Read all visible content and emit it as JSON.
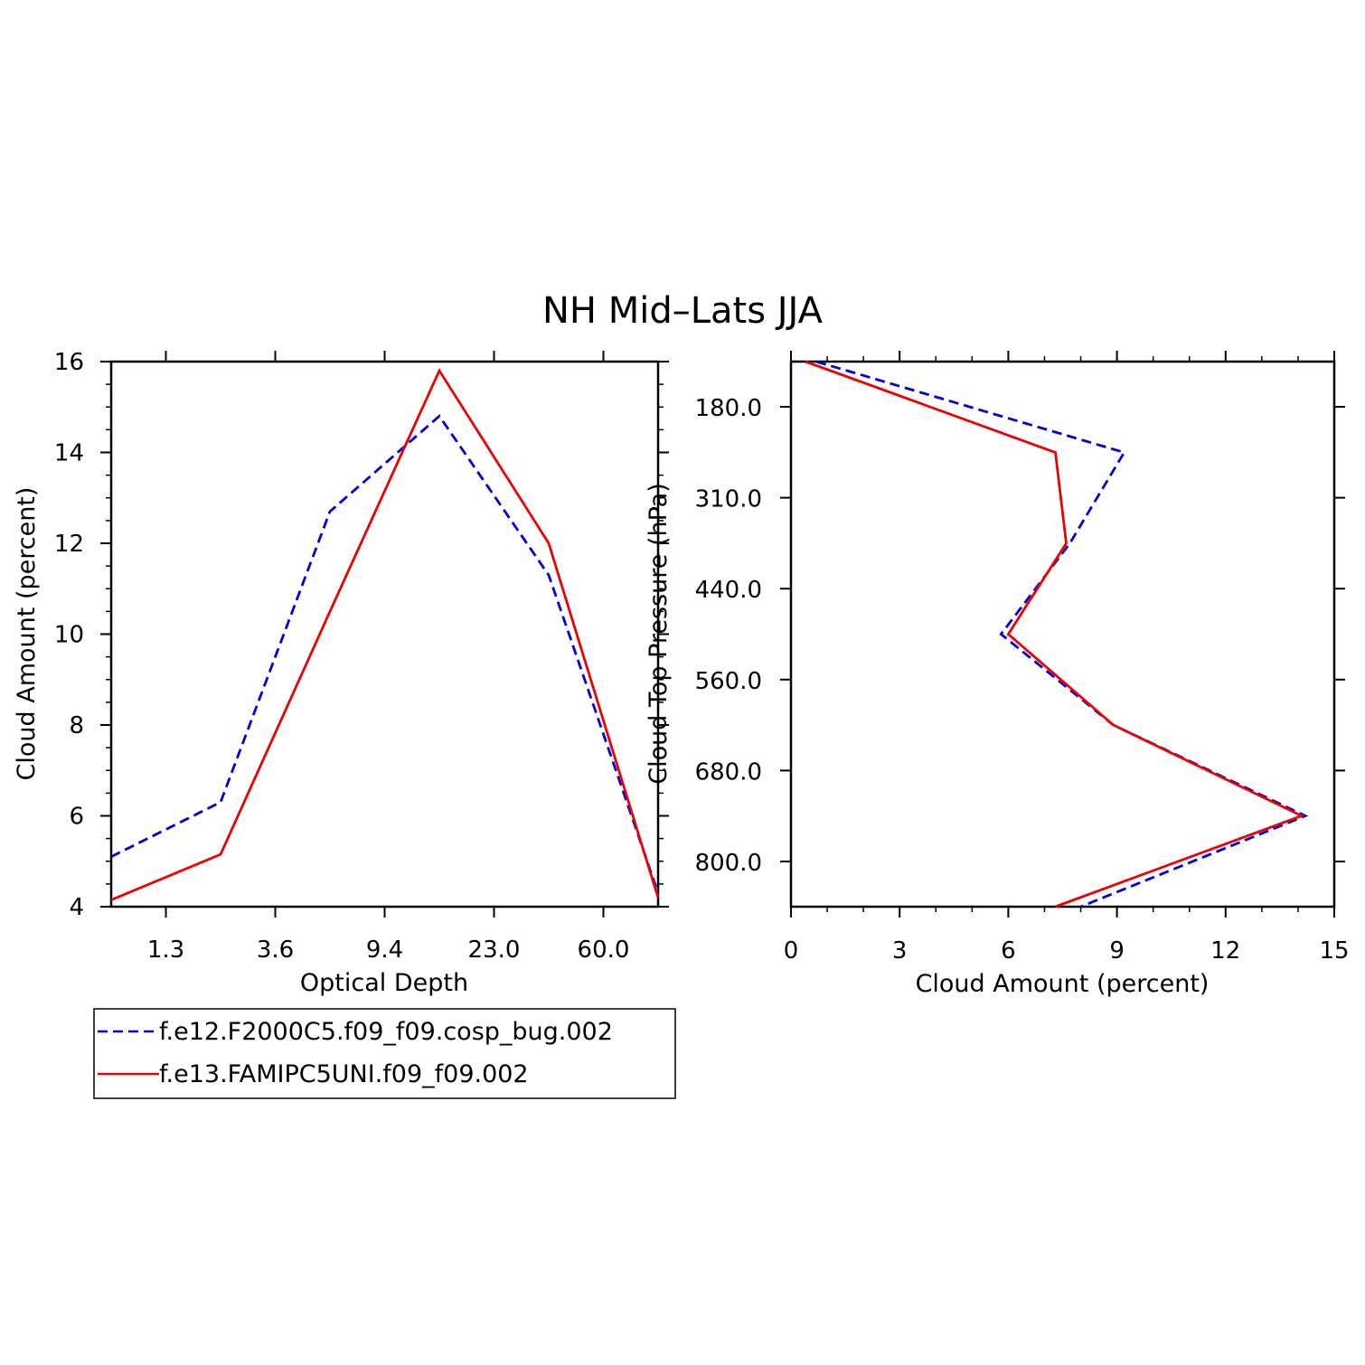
{
  "title": "NH Mid–Lats JJA",
  "legend": {
    "entries": [
      "f.e12.F2000C5.f09_f09.cosp_bug.002",
      "f.e13.FAMIPC5UNI.f09_f09.002"
    ]
  },
  "colors": {
    "series1": "#0000dd",
    "series2": "#ee0000"
  },
  "chart_data": [
    {
      "type": "line",
      "xlabel": "Optical Depth",
      "ylabel": "Cloud Amount (percent)",
      "ylim": [
        4,
        16
      ],
      "y_ticks": [
        4,
        6,
        8,
        10,
        12,
        14,
        16
      ],
      "x_tick_labels": [
        "1.3",
        "3.6",
        "9.4",
        "23.0",
        "60.0"
      ],
      "series": [
        {
          "name": "f.e12.F2000C5.f09_f09.cosp_bug.002",
          "style": "dashed",
          "values": [
            5.1,
            6.3,
            12.7,
            14.8,
            11.3,
            4.3
          ]
        },
        {
          "name": "f.e13.FAMIPC5UNI.f09_f09.002",
          "style": "solid",
          "values": [
            4.15,
            5.15,
            10.5,
            15.8,
            12.0,
            4.2
          ]
        }
      ]
    },
    {
      "type": "line",
      "xlabel": "Cloud Amount (percent)",
      "ylabel": "Cloud Top Pressure (hPa)",
      "xlim": [
        0,
        15
      ],
      "x_ticks": [
        0,
        3,
        6,
        9,
        12,
        15
      ],
      "y_tick_labels": [
        "180.0",
        "310.0",
        "440.0",
        "560.0",
        "680.0",
        "800.0"
      ],
      "y_inverted": true,
      "series": [
        {
          "name": "f.e12.F2000C5.f09_f09.cosp_bug.002",
          "style": "dashed",
          "values": [
            0.7,
            9.2,
            7.7,
            5.8,
            8.9,
            14.2,
            8.0
          ]
        },
        {
          "name": "f.e13.FAMIPC5UNI.f09_f09.002",
          "style": "solid",
          "values": [
            0.4,
            7.3,
            7.6,
            6.0,
            8.9,
            14.1,
            7.3
          ]
        }
      ]
    }
  ]
}
